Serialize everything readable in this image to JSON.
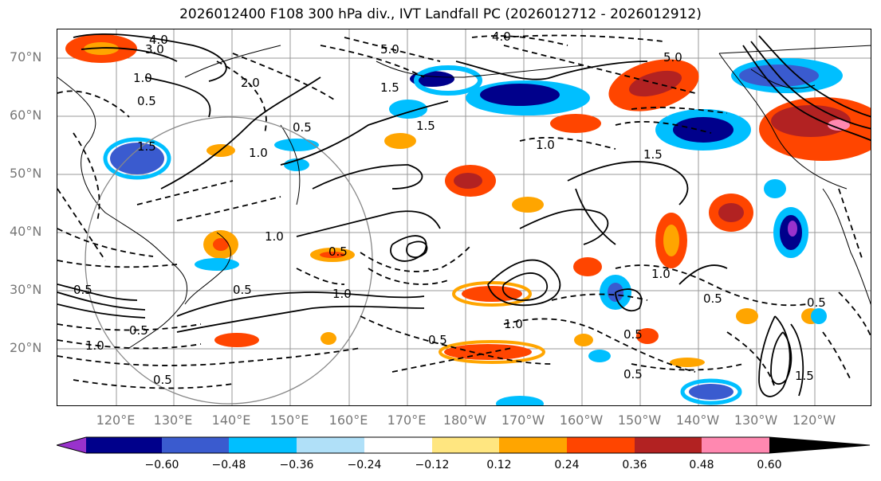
{
  "title": "2026012400 F108 300 hPa div., IVT Landfall PC (2026012712 - 2026012912)",
  "lat_labels": [
    "70°N",
    "60°N",
    "50°N",
    "40°N",
    "30°N",
    "20°N"
  ],
  "lon_labels": [
    "120°E",
    "130°E",
    "140°E",
    "150°E",
    "160°E",
    "170°E",
    "180°W",
    "170°W",
    "160°W",
    "150°W",
    "140°W",
    "130°W",
    "120°W"
  ],
  "colorbar": {
    "ticks": [
      "−0.60",
      "−0.48",
      "−0.36",
      "−0.24",
      "−0.12",
      "0.12",
      "0.24",
      "0.36",
      "0.48",
      "0.60"
    ],
    "colors": [
      "#9932cc",
      "#00008b",
      "#3a5bcf",
      "#00bfff",
      "#b0e0f8",
      "#ffffff",
      "#ffe680",
      "#ffa500",
      "#ff4500",
      "#b22222",
      "#ff88b0"
    ]
  },
  "contour_labels": [
    "4.0",
    "3.0",
    "5.0",
    "4.0",
    "5.0",
    "2.0",
    "1.5",
    "0.5",
    "1.0",
    "1.5",
    "0.5",
    "1.0",
    "1.5",
    "1.0",
    "1.0",
    "0.5",
    "0.5",
    "1.0",
    "0.5",
    "0.5",
    "1.0",
    "0.5",
    "1.0",
    "0.5",
    "1.5",
    "1.0",
    "0.5",
    "0.5",
    "0.5",
    "1.5",
    "0.5"
  ]
}
